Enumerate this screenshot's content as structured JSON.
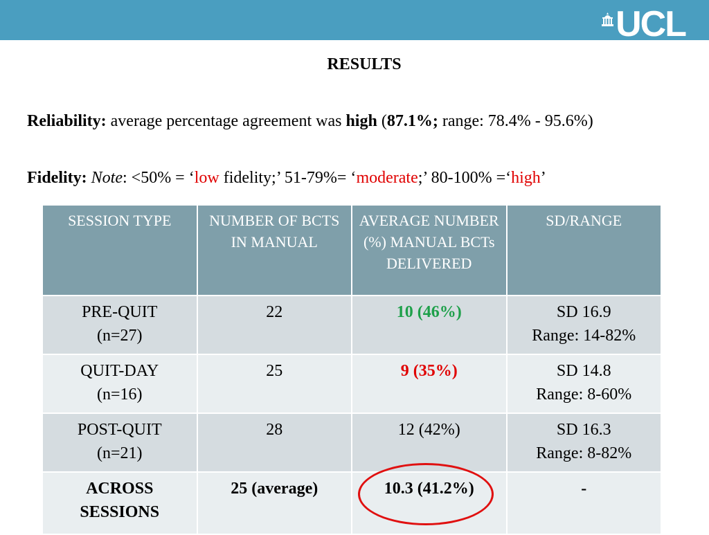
{
  "header": {
    "logo_text": "UCL",
    "bar_color": "#4a9ec0"
  },
  "heading": "RESULTS",
  "reliability": {
    "label": "Reliability:",
    "text1": " average percentage agreement was ",
    "high": "high",
    "text2": " (",
    "pct": "87.1%;",
    "range": " range: 78.4% - 95.6%)"
  },
  "fidelity": {
    "label": "Fidelity:",
    "note_space": " ",
    "note": "Note",
    "t1": ": <50% = ‘",
    "low": "low",
    "t2": " fidelity;’ 51-79%= ‘",
    "moderate": "moderate",
    "t3": ";’ 80-100% =‘",
    "high": "high",
    "t4": "’"
  },
  "table": {
    "headers": [
      "SESSION TYPE",
      "NUMBER OF BCTS IN MANUAL",
      "AVERAGE NUMBER (%) MANUAL BCTs DELIVERED",
      "SD/RANGE"
    ],
    "rows": [
      {
        "session": [
          "PRE-QUIT",
          "(n=27)"
        ],
        "bcts": "22",
        "avg": "10 (46%)",
        "sd": [
          "SD 16.9",
          "Range: 14-82%"
        ]
      },
      {
        "session": [
          "QUIT-DAY",
          "(n=16)"
        ],
        "bcts": "25",
        "avg": "9 (35%)",
        "sd": [
          "SD 14.8",
          "Range: 8-60%"
        ]
      },
      {
        "session": [
          "POST-QUIT",
          "(n=21)"
        ],
        "bcts": "28",
        "avg": "12 (42%)",
        "sd": [
          "SD 16.3",
          "Range: 8-82%"
        ]
      },
      {
        "session": [
          "ACROSS",
          "SESSIONS"
        ],
        "bcts": "25 (average)",
        "avg": "10.3 (41.2%)",
        "sd": [
          "-"
        ]
      }
    ]
  },
  "colors": {
    "green": "#1ea04a",
    "red": "#e00000",
    "header_bg": "#7f9faa",
    "circle": "#e01010"
  }
}
